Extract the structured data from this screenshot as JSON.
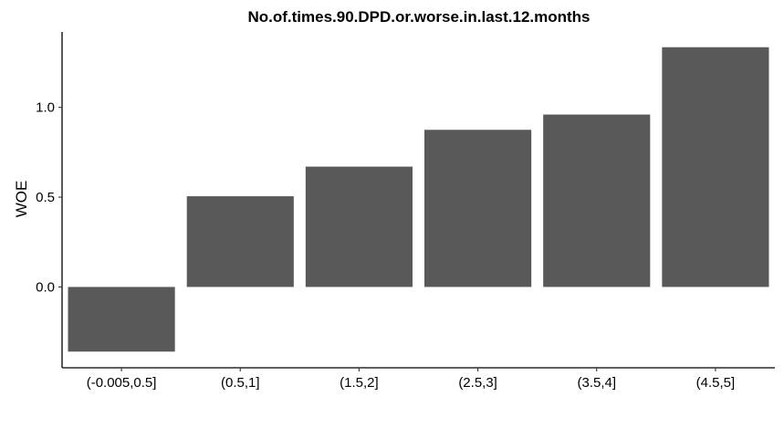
{
  "chart_data": {
    "type": "bar",
    "title": "No.of.times.90.DPD.or.worse.in.last.12.months",
    "xlabel": "",
    "ylabel": "WOE",
    "categories": [
      "(-0.005,0.5]",
      "(0.5,1]",
      "(1.5,2]",
      "(2.5,3]",
      "(3.5,4]",
      "(4.5,5]"
    ],
    "values": [
      -0.36,
      0.505,
      0.67,
      0.875,
      0.96,
      1.335
    ],
    "ylim": [
      -0.45,
      1.42
    ],
    "yticks": [
      0.0,
      0.5,
      1.0
    ],
    "ytick_labels": [
      "0.0",
      "0.5",
      "1.0"
    ],
    "bar_color": "#595959",
    "grid": false,
    "legend": "none"
  }
}
